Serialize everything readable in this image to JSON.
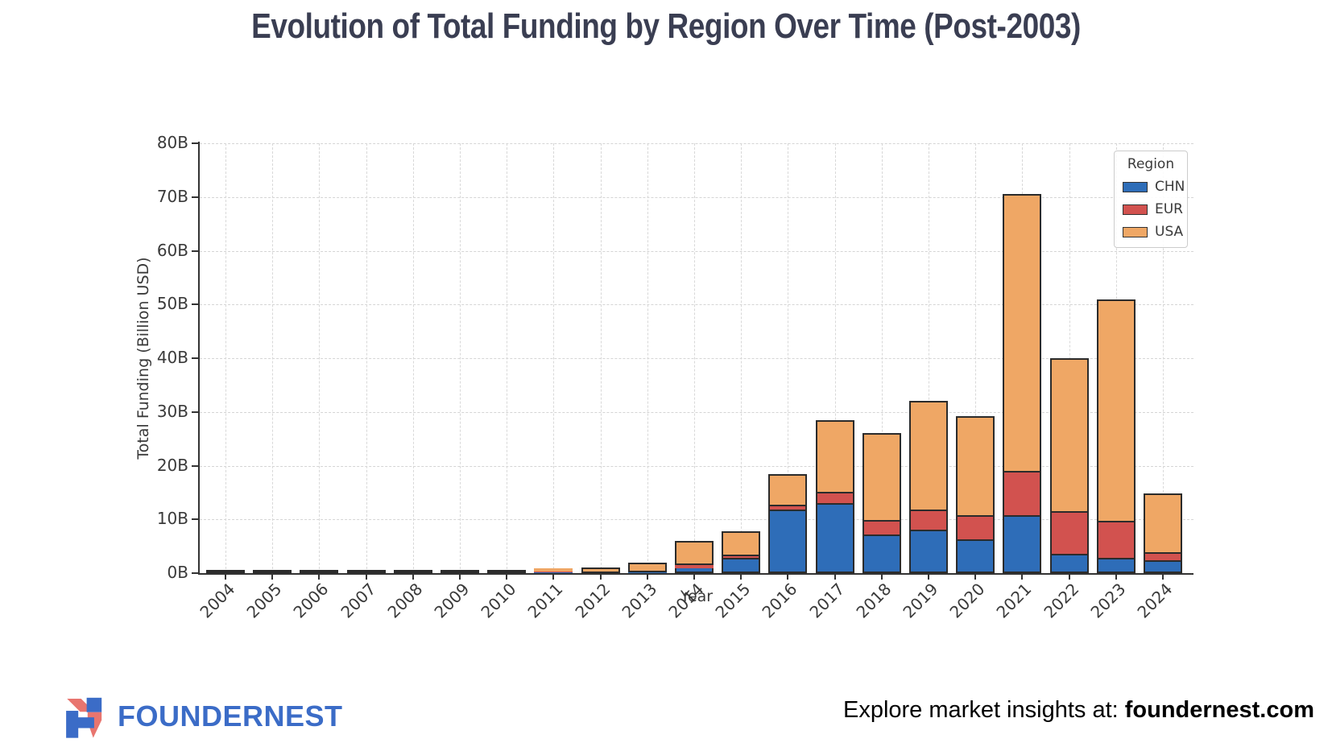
{
  "title": "Evolution of Total Funding by Region Over Time (Post-2003)",
  "chart_data": {
    "type": "bar",
    "stacked": true,
    "title": "Evolution of Total Funding by Region Over Time (Post-2003)",
    "xlabel": "Year",
    "ylabel": "Total Funding (Billion USD)",
    "ylim": [
      0,
      80
    ],
    "ytick_step": 10,
    "ytick_labels": [
      "0B",
      "10B",
      "20B",
      "30B",
      "40B",
      "50B",
      "60B",
      "70B",
      "80B"
    ],
    "grid": true,
    "legend_title": "Region",
    "legend_position": "upper right",
    "categories": [
      "2004",
      "2005",
      "2006",
      "2007",
      "2008",
      "2009",
      "2010",
      "2011",
      "2012",
      "2013",
      "2014",
      "2015",
      "2016",
      "2017",
      "2018",
      "2019",
      "2020",
      "2021",
      "2022",
      "2023",
      "2024"
    ],
    "series": [
      {
        "name": "CHN",
        "color": "#2e6db8",
        "values": [
          0.03,
          0.02,
          0.03,
          0.02,
          0.05,
          0.05,
          0.05,
          0.1,
          0.1,
          0.2,
          1.2,
          2.8,
          11.8,
          13.0,
          7.2,
          8.1,
          6.3,
          10.8,
          3.6,
          2.9,
          2.4
        ]
      },
      {
        "name": "EUR",
        "color": "#d2524f",
        "values": [
          0.05,
          0.04,
          0.05,
          0.04,
          0.1,
          0.1,
          0.1,
          0.15,
          0.2,
          0.3,
          0.6,
          0.7,
          1.0,
          2.2,
          2.7,
          3.7,
          4.5,
          8.2,
          8.0,
          6.8,
          1.5
        ]
      },
      {
        "name": "USA",
        "color": "#efa765",
        "values": [
          0.22,
          0.14,
          0.17,
          0.14,
          0.3,
          0.3,
          0.5,
          0.65,
          0.8,
          1.5,
          4.2,
          4.3,
          5.7,
          13.2,
          16.1,
          20.3,
          18.4,
          51.6,
          28.4,
          41.3,
          10.9
        ]
      }
    ],
    "bar_edge_color": "#2b2b2b"
  },
  "footer": {
    "logo_text": "FOUNDERNEST",
    "tagline_prefix": "Explore market insights at: ",
    "tagline_bold": "foundernest.com"
  },
  "colors": {
    "chn_blue": "#2e6db8",
    "eur_red": "#d2524f",
    "usa_orange": "#efa765",
    "title_navy": "#3a3e52",
    "logo_blue": "#3b6cc7",
    "logo_red": "#e8756f",
    "grid_gray": "#d5d5d5",
    "spine_dark": "#333333"
  }
}
